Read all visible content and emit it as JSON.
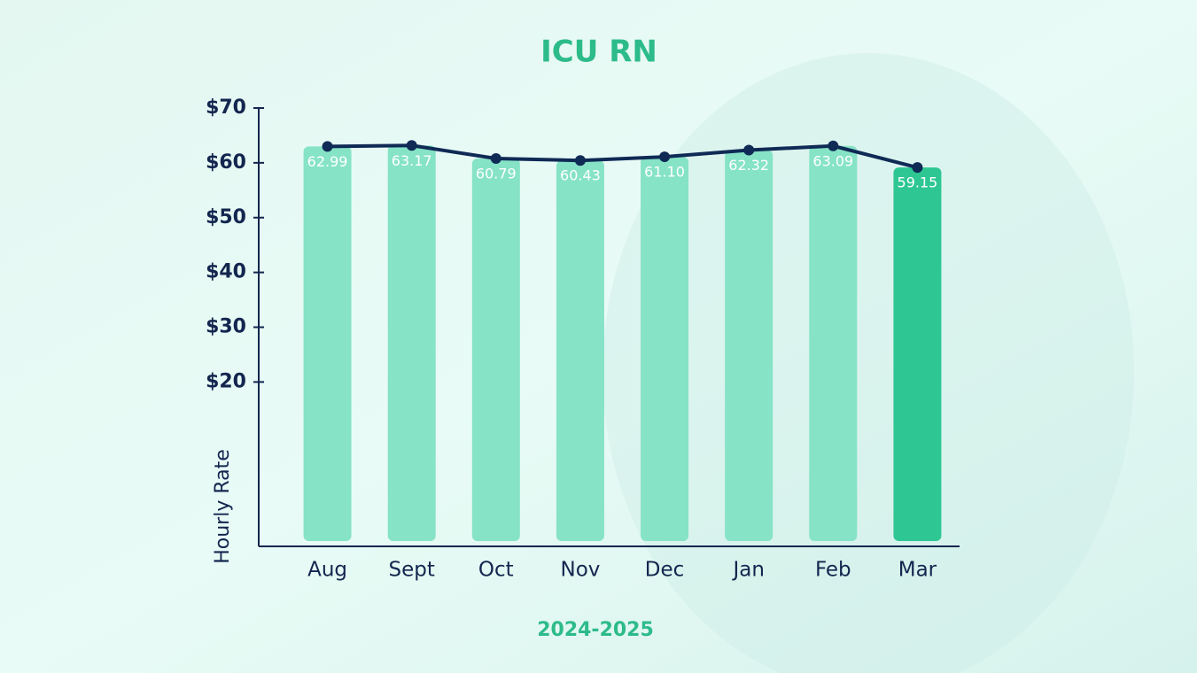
{
  "chart_data": {
    "type": "bar",
    "title": "ICU RN",
    "x_label": "2024-2025",
    "y_label": "Hourly Rate",
    "categories": [
      "Aug",
      "Sept",
      "Oct",
      "Nov",
      "Dec",
      "Jan",
      "Feb",
      "Mar"
    ],
    "values": [
      62.99,
      63.17,
      60.79,
      60.43,
      61.1,
      62.32,
      63.09,
      59.15
    ],
    "value_labels": [
      "62.99",
      "63.17",
      "60.79",
      "60.43",
      "61.10",
      "62.32",
      "63.09",
      "59.15"
    ],
    "colors": [
      "#86e3c6",
      "#86e3c6",
      "#86e3c6",
      "#86e3c6",
      "#86e3c6",
      "#86e3c6",
      "#86e3c6",
      "#2ec793"
    ],
    "line_color": "#0f2a55",
    "ylim": [
      -10,
      70
    ],
    "yticks": [
      {
        "value": 20,
        "label": "$20"
      },
      {
        "value": 30,
        "label": "$30"
      },
      {
        "value": 40,
        "label": "$40"
      },
      {
        "value": 50,
        "label": "$50"
      },
      {
        "value": 60,
        "label": "$60"
      },
      {
        "value": 70,
        "label": "$70"
      }
    ]
  }
}
